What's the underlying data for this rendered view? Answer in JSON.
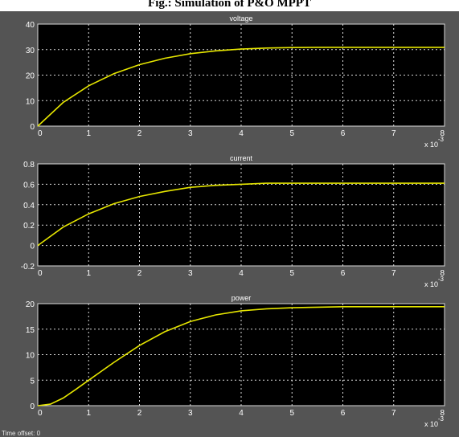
{
  "figure": {
    "caption": "Fig.: Simulation of P&O MPPT",
    "status_text": "Time offset:  0"
  },
  "colors": {
    "scope_bg": "#545454",
    "axes_bg": "#000000",
    "trace": "#e6e600",
    "grid": "#ffffff",
    "text": "#ffffff"
  },
  "chart_data": [
    {
      "type": "line",
      "title": "voltage",
      "xlim": [
        0,
        8
      ],
      "ylim": [
        0,
        40
      ],
      "x_exponent_label": "x 10",
      "x_exponent": "-3",
      "x_ticks": [
        "0",
        "1",
        "2",
        "3",
        "4",
        "5",
        "6",
        "7",
        "8"
      ],
      "y_ticks": [
        "0",
        "10",
        "20",
        "30",
        "40"
      ],
      "grid": true,
      "series": [
        {
          "x": [
            0,
            0.5,
            1,
            1.5,
            2,
            2.5,
            3,
            3.5,
            4,
            4.5,
            5,
            5.5,
            6,
            6.5,
            7,
            7.5,
            8
          ],
          "y": [
            0,
            9.3,
            15.8,
            20.6,
            24.1,
            26.6,
            28.4,
            29.5,
            30.2,
            30.6,
            30.8,
            30.9,
            30.9,
            30.9,
            30.9,
            30.9,
            30.9
          ]
        }
      ]
    },
    {
      "type": "line",
      "title": "current",
      "xlim": [
        0,
        8
      ],
      "ylim": [
        -0.2,
        0.8
      ],
      "x_exponent_label": "x 10",
      "x_exponent": "-3",
      "x_ticks": [
        "0",
        "1",
        "2",
        "3",
        "4",
        "5",
        "6",
        "7",
        "8"
      ],
      "y_ticks": [
        "-0.2",
        "0",
        "0.2",
        "0.4",
        "0.6",
        "0.8"
      ],
      "grid": true,
      "series": [
        {
          "x": [
            0,
            0.5,
            1,
            1.5,
            2,
            2.5,
            3,
            3.5,
            4,
            4.5,
            5,
            5.5,
            6,
            6.5,
            7,
            7.5,
            8
          ],
          "y": [
            0,
            0.18,
            0.31,
            0.41,
            0.48,
            0.53,
            0.57,
            0.59,
            0.6,
            0.61,
            0.61,
            0.61,
            0.61,
            0.61,
            0.61,
            0.61,
            0.61
          ]
        }
      ]
    },
    {
      "type": "line",
      "title": "power",
      "xlim": [
        0,
        8
      ],
      "ylim": [
        0,
        20
      ],
      "x_exponent_label": "x 10",
      "x_exponent": "-3",
      "x_ticks": [
        "0",
        "1",
        "2",
        "3",
        "4",
        "5",
        "6",
        "7",
        "8"
      ],
      "y_ticks": [
        "0",
        "5",
        "10",
        "15",
        "20"
      ],
      "grid": true,
      "series": [
        {
          "x": [
            0,
            0.25,
            0.5,
            0.75,
            1,
            1.5,
            2,
            2.5,
            3,
            3.5,
            4,
            4.5,
            5,
            5.5,
            6,
            6.5,
            7,
            7.5,
            8
          ],
          "y": [
            0,
            0.3,
            1.5,
            3.2,
            5.0,
            8.5,
            11.8,
            14.5,
            16.5,
            17.8,
            18.6,
            19.0,
            19.2,
            19.3,
            19.4,
            19.4,
            19.4,
            19.4,
            19.4
          ]
        }
      ]
    }
  ]
}
